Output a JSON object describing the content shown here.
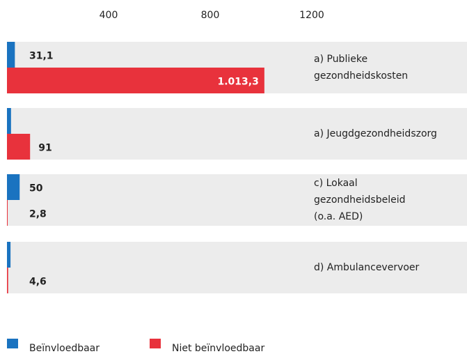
{
  "chart_data": {
    "type": "hbar",
    "categories": [
      [
        "a) Publieke",
        "gezondheidskosten"
      ],
      [
        "a) Jeugdgezondheidszorg"
      ],
      [
        "c) Lokaal",
        "gezondheidsbeleid",
        "(o.a. AED)"
      ],
      [
        "d) Ambulancevervoer"
      ]
    ],
    "series": [
      {
        "name": "Beïnvloedbaar",
        "color": "#1a73c0",
        "values": [
          31.1,
          16,
          50,
          14
        ],
        "value_labels": [
          "31,1",
          null,
          "50",
          null
        ]
      },
      {
        "name": "Niet beïnvloedbaar",
        "color": "#e8323c",
        "values": [
          1013.3,
          91,
          2.8,
          4.6
        ],
        "value_labels": [
          "1.013,3",
          "91",
          "2,8",
          "4,6"
        ]
      }
    ],
    "xlim": [
      0,
      1200
    ],
    "xticks": [
      400,
      800,
      1200
    ],
    "legend": "bottom-left"
  }
}
